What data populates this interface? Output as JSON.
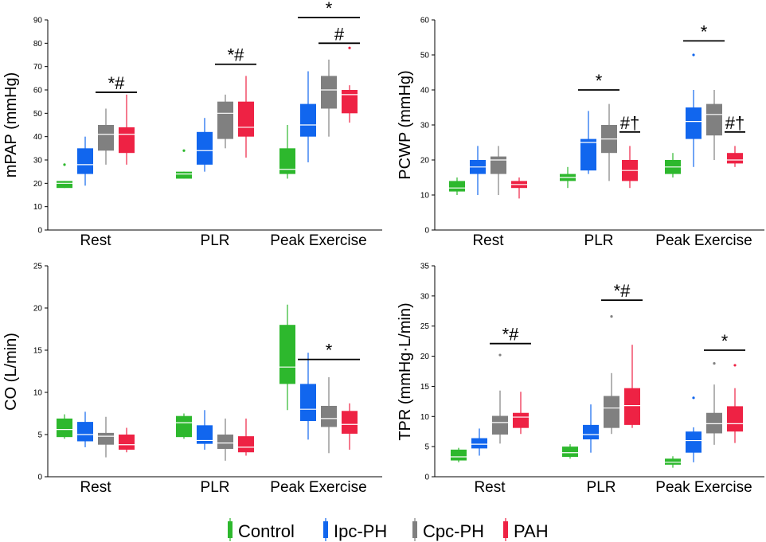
{
  "colors": {
    "Control": "#2db82d",
    "Ipc-PH": "#1166ee",
    "Cpc-PH": "#808080",
    "PAH": "#ee2244"
  },
  "legend": {
    "items": [
      {
        "label": "Control",
        "color": "#2db82d"
      },
      {
        "label": "Ipc-PH",
        "color": "#1166ee"
      },
      {
        "label": "Cpc-PH",
        "color": "#808080"
      },
      {
        "label": "PAH",
        "color": "#ee2244"
      }
    ]
  },
  "chart_data": [
    {
      "type": "box",
      "ylabel": "mPAP (mmHg)",
      "ylim": [
        0,
        90
      ],
      "yticks": [
        0,
        10,
        20,
        30,
        40,
        50,
        60,
        70,
        80,
        90
      ],
      "categories": [
        "Rest",
        "PLR",
        "Peak Exercise"
      ],
      "series": [
        {
          "name": "Control",
          "boxes": [
            {
              "min": 18,
              "q1": 18,
              "median": 20,
              "q3": 21,
              "max": 21,
              "outliers": [
                28
              ]
            },
            {
              "min": 22,
              "q1": 22,
              "median": 24,
              "q3": 25,
              "max": 25,
              "outliers": [
                34
              ]
            },
            {
              "min": 22,
              "q1": 24,
              "median": 26,
              "q3": 35,
              "max": 45,
              "outliers": []
            }
          ]
        },
        {
          "name": "Ipc-PH",
          "boxes": [
            {
              "min": 19,
              "q1": 24,
              "median": 28,
              "q3": 35,
              "max": 40,
              "outliers": []
            },
            {
              "min": 25,
              "q1": 28,
              "median": 34,
              "q3": 42,
              "max": 48,
              "outliers": []
            },
            {
              "min": 29,
              "q1": 40,
              "median": 45,
              "q3": 54,
              "max": 68,
              "outliers": []
            }
          ]
        },
        {
          "name": "Cpc-PH",
          "boxes": [
            {
              "min": 28,
              "q1": 34,
              "median": 41,
              "q3": 45,
              "max": 52,
              "outliers": []
            },
            {
              "min": 35,
              "q1": 39,
              "median": 50,
              "q3": 55,
              "max": 58,
              "outliers": []
            },
            {
              "min": 40,
              "q1": 52,
              "median": 60,
              "q3": 66,
              "max": 73,
              "outliers": []
            }
          ]
        },
        {
          "name": "PAH",
          "boxes": [
            {
              "min": 28,
              "q1": 33,
              "median": 41,
              "q3": 44,
              "max": 58,
              "outliers": []
            },
            {
              "min": 31,
              "q1": 40,
              "median": 44,
              "q3": 55,
              "max": 66,
              "outliers": []
            },
            {
              "min": 46,
              "q1": 50,
              "median": 58,
              "q3": 60,
              "max": 62,
              "outliers": [
                78
              ]
            }
          ]
        }
      ],
      "annotations": [
        {
          "text": "*#",
          "category": 0,
          "from": 2,
          "to": 3,
          "y": 59
        },
        {
          "text": "*#",
          "category": 1,
          "from": 2,
          "to": 3,
          "y": 71
        },
        {
          "text": "*",
          "category": 2,
          "from": 1,
          "to": 3,
          "y": 91
        },
        {
          "text": "#",
          "category": 2,
          "from": 2,
          "to": 3,
          "y": 80
        }
      ]
    },
    {
      "type": "box",
      "ylabel": "PCWP (mmHg)",
      "ylim": [
        0,
        60
      ],
      "yticks": [
        0,
        10,
        20,
        30,
        40,
        50,
        60
      ],
      "categories": [
        "Rest",
        "PLR",
        "Peak Exercise"
      ],
      "series": [
        {
          "name": "Control",
          "boxes": [
            {
              "min": 10,
              "q1": 11,
              "median": 12,
              "q3": 14,
              "max": 15,
              "outliers": []
            },
            {
              "min": 12,
              "q1": 14,
              "median": 15,
              "q3": 16,
              "max": 18,
              "outliers": []
            },
            {
              "min": 15,
              "q1": 16,
              "median": 18,
              "q3": 20,
              "max": 22,
              "outliers": []
            }
          ]
        },
        {
          "name": "Ipc-PH",
          "boxes": [
            {
              "min": 10,
              "q1": 16,
              "median": 18,
              "q3": 20,
              "max": 24,
              "outliers": []
            },
            {
              "min": 16,
              "q1": 17,
              "median": 25,
              "q3": 26,
              "max": 34,
              "outliers": []
            },
            {
              "min": 18,
              "q1": 26,
              "median": 31,
              "q3": 35,
              "max": 40,
              "outliers": [
                50
              ]
            }
          ]
        },
        {
          "name": "Cpc-PH",
          "boxes": [
            {
              "min": 10,
              "q1": 16,
              "median": 20,
              "q3": 21,
              "max": 24,
              "outliers": []
            },
            {
              "min": 14,
              "q1": 22,
              "median": 26,
              "q3": 30,
              "max": 36,
              "outliers": []
            },
            {
              "min": 20,
              "q1": 27,
              "median": 33,
              "q3": 36,
              "max": 40,
              "outliers": []
            }
          ]
        },
        {
          "name": "PAH",
          "boxes": [
            {
              "min": 9,
              "q1": 12,
              "median": 13,
              "q3": 14,
              "max": 15,
              "outliers": []
            },
            {
              "min": 12,
              "q1": 14,
              "median": 17,
              "q3": 20,
              "max": 24,
              "outliers": []
            },
            {
              "min": 18,
              "q1": 19,
              "median": 20,
              "q3": 22,
              "max": 24,
              "outliers": []
            }
          ]
        }
      ],
      "annotations": [
        {
          "text": "*",
          "category": 1,
          "from": 1,
          "to": 2,
          "y": 40
        },
        {
          "text": "#†",
          "category": 1,
          "from": 3,
          "to": 3,
          "y": 28
        },
        {
          "text": "*",
          "category": 2,
          "from": 1,
          "to": 2,
          "y": 54
        },
        {
          "text": "#†",
          "category": 2,
          "from": 3,
          "to": 3,
          "y": 28
        }
      ]
    },
    {
      "type": "box",
      "ylabel": "CO (L/min)",
      "ylim": [
        0,
        25
      ],
      "yticks": [
        0,
        5,
        10,
        15,
        20,
        25
      ],
      "categories": [
        "Rest",
        "PLR",
        "Peak Exercise"
      ],
      "series": [
        {
          "name": "Control",
          "boxes": [
            {
              "min": 4.5,
              "q1": 4.7,
              "median": 5.6,
              "q3": 6.9,
              "max": 7.4,
              "outliers": []
            },
            {
              "min": 4.5,
              "q1": 4.7,
              "median": 6.4,
              "q3": 7.2,
              "max": 7.5,
              "outliers": []
            },
            {
              "min": 7.9,
              "q1": 11,
              "median": 13,
              "q3": 18,
              "max": 20.4,
              "outliers": []
            }
          ]
        },
        {
          "name": "Ipc-PH",
          "boxes": [
            {
              "min": 3.5,
              "q1": 4.2,
              "median": 5,
              "q3": 6.5,
              "max": 7.7,
              "outliers": []
            },
            {
              "min": 3.2,
              "q1": 3.9,
              "median": 4.3,
              "q3": 6.1,
              "max": 7.9,
              "outliers": []
            },
            {
              "min": 4.4,
              "q1": 6.6,
              "median": 8,
              "q3": 11,
              "max": 14.7,
              "outliers": []
            }
          ]
        },
        {
          "name": "Cpc-PH",
          "boxes": [
            {
              "min": 2.3,
              "q1": 3.8,
              "median": 4.8,
              "q3": 5.2,
              "max": 7.1,
              "outliers": []
            },
            {
              "min": 1.9,
              "q1": 3.3,
              "median": 4,
              "q3": 5,
              "max": 6.9,
              "outliers": []
            },
            {
              "min": 2.8,
              "q1": 5.9,
              "median": 6.9,
              "q3": 8.4,
              "max": 11.8,
              "outliers": []
            }
          ]
        },
        {
          "name": "PAH",
          "boxes": [
            {
              "min": 2.9,
              "q1": 3.2,
              "median": 3.8,
              "q3": 5,
              "max": 5.8,
              "outliers": []
            },
            {
              "min": 2.5,
              "q1": 2.9,
              "median": 3.5,
              "q3": 4.8,
              "max": 6.9,
              "outliers": []
            },
            {
              "min": 3.2,
              "q1": 5.1,
              "median": 6.2,
              "q3": 7.8,
              "max": 8.7,
              "outliers": []
            }
          ]
        }
      ],
      "annotations": [
        {
          "text": "*",
          "category": 2,
          "from": 1,
          "to": 3,
          "y": 13.9
        }
      ]
    },
    {
      "type": "box",
      "ylabel": "TPR (mmHg·L/min)",
      "ylim": [
        0,
        35
      ],
      "yticks": [
        0,
        5,
        10,
        15,
        20,
        25,
        30,
        35
      ],
      "categories": [
        "Rest",
        "PLR",
        "Peak Exercise"
      ],
      "series": [
        {
          "name": "Control",
          "boxes": [
            {
              "min": 2.4,
              "q1": 2.7,
              "median": 3.3,
              "q3": 4.5,
              "max": 4.8,
              "outliers": []
            },
            {
              "min": 3,
              "q1": 3.3,
              "median": 4,
              "q3": 5,
              "max": 5.4,
              "outliers": []
            },
            {
              "min": 1.5,
              "q1": 2,
              "median": 2.4,
              "q3": 3,
              "max": 3.4,
              "outliers": []
            }
          ]
        },
        {
          "name": "Ipc-PH",
          "boxes": [
            {
              "min": 3.5,
              "q1": 4.7,
              "median": 5.4,
              "q3": 6.4,
              "max": 8,
              "outliers": []
            },
            {
              "min": 4,
              "q1": 6.2,
              "median": 7,
              "q3": 8.6,
              "max": 12,
              "outliers": []
            },
            {
              "min": 2.4,
              "q1": 4,
              "median": 6,
              "q3": 7.5,
              "max": 8.2,
              "outliers": [
                13.1
              ]
            }
          ]
        },
        {
          "name": "Cpc-PH",
          "boxes": [
            {
              "min": 5.5,
              "q1": 7,
              "median": 9,
              "q3": 10.1,
              "max": 14.3,
              "outliers": [
                20.2
              ]
            },
            {
              "min": 7.1,
              "q1": 8.1,
              "median": 11.4,
              "q3": 13.4,
              "max": 17.2,
              "outliers": [
                26.6
              ]
            },
            {
              "min": 5.3,
              "q1": 7.2,
              "median": 8.8,
              "q3": 10.6,
              "max": 15.3,
              "outliers": [
                18.8
              ]
            }
          ]
        },
        {
          "name": "PAH",
          "boxes": [
            {
              "min": 7.1,
              "q1": 8.1,
              "median": 9.9,
              "q3": 10.6,
              "max": 14.1,
              "outliers": []
            },
            {
              "min": 8.1,
              "q1": 8.6,
              "median": 11.8,
              "q3": 14.7,
              "max": 21.9,
              "outliers": []
            },
            {
              "min": 5.6,
              "q1": 7.5,
              "median": 8.8,
              "q3": 11.7,
              "max": 14.7,
              "outliers": [
                18.5
              ]
            }
          ]
        }
      ],
      "annotations": [
        {
          "text": "*#",
          "category": 0,
          "from": 2,
          "to": 3,
          "y": 22.1
        },
        {
          "text": "*#",
          "category": 1,
          "from": 2,
          "to": 3,
          "y": 29.3
        },
        {
          "text": "*",
          "category": 2,
          "from": 2,
          "to": 3,
          "y": 21
        }
      ]
    }
  ]
}
